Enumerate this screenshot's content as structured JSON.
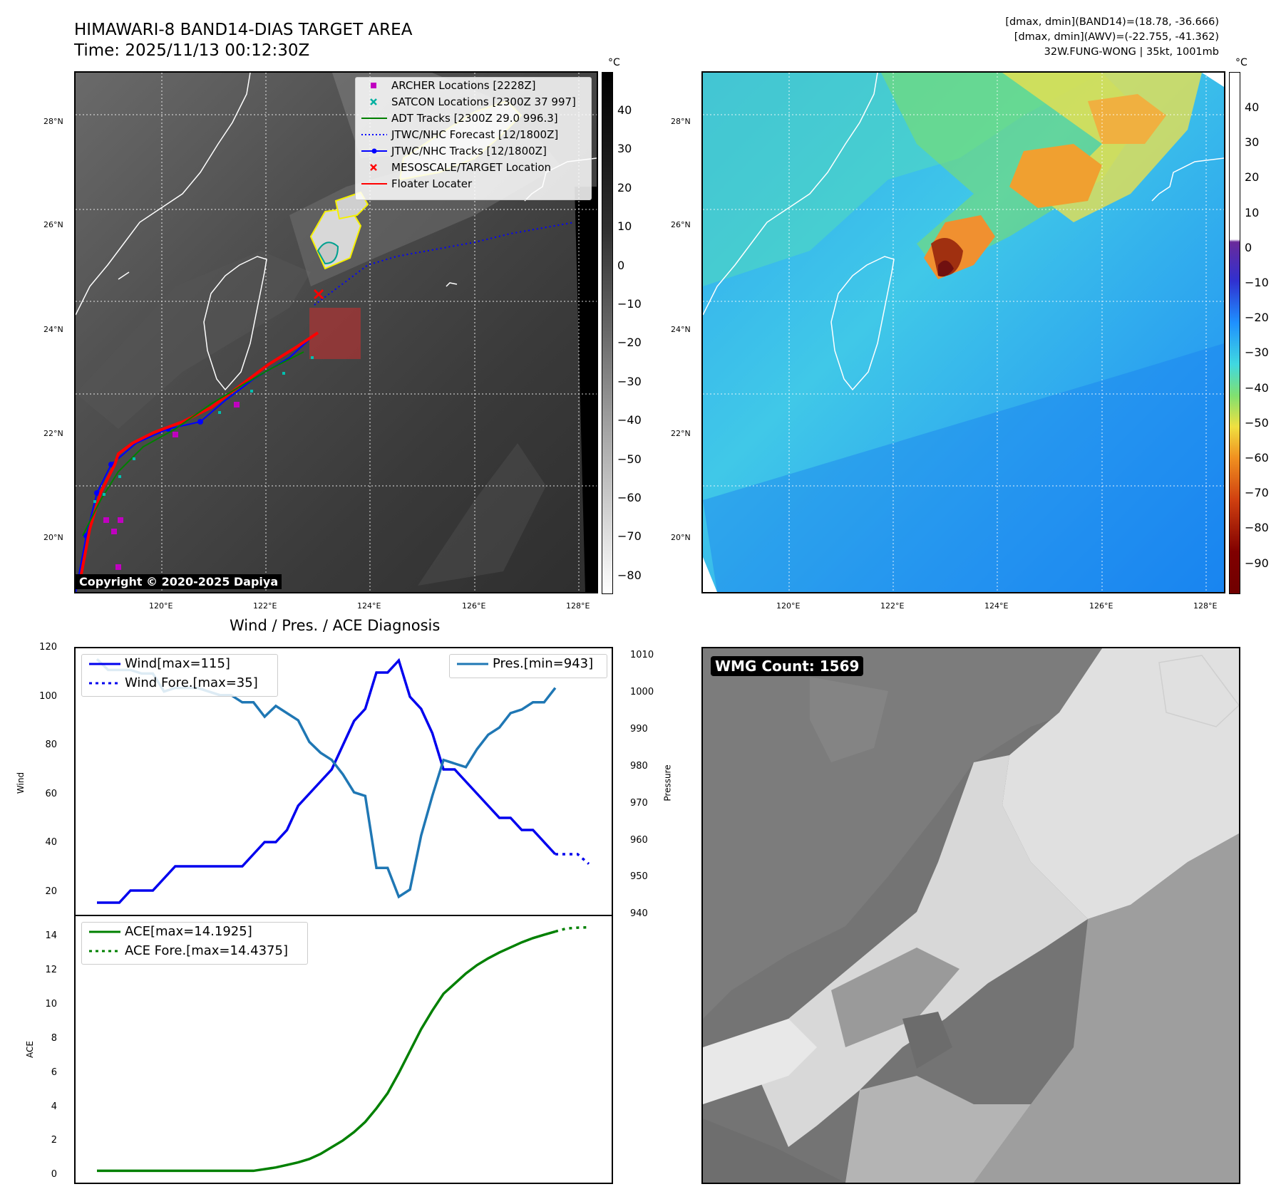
{
  "header": {
    "title_line1": "HIMAWARI-8 BAND14-DIAS TARGET AREA",
    "title_line2": "Time: 2025/11/13 00:12:30Z",
    "info_line1": "[dmax, dmin](BAND14)=(18.78, -36.666)",
    "info_line2": "[dmax, dmin](AWV)=(-22.755, -41.362)",
    "info_line3": "32W.FUNG-WONG | 35kt, 1001mb"
  },
  "map_axes": {
    "lat_ticks": [
      "28°N",
      "26°N",
      "24°N",
      "22°N",
      "20°N"
    ],
    "lon_ticks": [
      "120°E",
      "122°E",
      "124°E",
      "126°E",
      "128°E"
    ]
  },
  "ir_colorbar": {
    "unit": "°C",
    "ticks": [
      "40",
      "30",
      "20",
      "10",
      "0",
      "−10",
      "−20",
      "−30",
      "−40",
      "−50",
      "−60",
      "−70",
      "−80"
    ]
  },
  "wv_colorbar": {
    "unit": "°C",
    "ticks": [
      "40",
      "30",
      "20",
      "10",
      "0",
      "−10",
      "−20",
      "−30",
      "−40",
      "−50",
      "−60",
      "−70",
      "−80",
      "−90"
    ]
  },
  "legend": {
    "items": [
      {
        "label": "ARCHER Locations [2228Z]",
        "symbol": "square",
        "color": "#c000c0"
      },
      {
        "label": "SATCON Locations [2300Z 37 997]",
        "symbol": "x",
        "color": "#00b0a0"
      },
      {
        "label": "ADT Tracks [2300Z 29.0 996.3]",
        "symbol": "line",
        "color": "#008000"
      },
      {
        "label": "JTWC/NHC Forecast [12/1800Z]",
        "symbol": "dotted",
        "color": "#0000ff"
      },
      {
        "label": "JTWC/NHC Tracks [12/1800Z]",
        "symbol": "line-dot",
        "color": "#0000ff"
      },
      {
        "label": "MESOSCALE/TARGET Location",
        "symbol": "x",
        "color": "#ff0000"
      },
      {
        "label": "Floater Locater",
        "symbol": "line",
        "color": "#ff0000"
      }
    ]
  },
  "copyright": "Copyright © 2020-2025 Dapiya",
  "diagnosis": {
    "title": "Wind / Pres. / ACE Diagnosis",
    "wind_ylabel": "Wind",
    "pres_ylabel": "Pressure",
    "ace_ylabel": "ACE",
    "legend_wind": "Wind[max=115]",
    "legend_wind_fore": "Wind Fore.[max=35]",
    "legend_pres": "Pres.[min=943]",
    "legend_ace": "ACE[max=14.1925]",
    "legend_ace_fore": "ACE Fore.[max=14.4375]",
    "wind_ticks": [
      "120",
      "100",
      "80",
      "60",
      "40",
      "20"
    ],
    "pres_ticks": [
      "1010",
      "1000",
      "990",
      "980",
      "970",
      "960",
      "950",
      "940"
    ],
    "ace_ticks": [
      "14",
      "12",
      "10",
      "8",
      "6",
      "4",
      "2",
      "0"
    ]
  },
  "wmg": {
    "label": "WMG Count: 1569"
  },
  "chart_data": [
    {
      "type": "line",
      "title": "Wind / Pres. / ACE Diagnosis",
      "ylabel": "Wind",
      "ylim": [
        10,
        120
      ],
      "y2label": "Pressure",
      "y2lim": [
        938,
        1012
      ],
      "series": [
        {
          "name": "Wind[max=115]",
          "axis": "left",
          "color": "#0000ee",
          "values": [
            15,
            15,
            15,
            20,
            20,
            20,
            25,
            30,
            30,
            30,
            30,
            30,
            30,
            30,
            35,
            40,
            40,
            45,
            55,
            60,
            65,
            70,
            80,
            90,
            95,
            110,
            110,
            115,
            100,
            95,
            85,
            70,
            70,
            65,
            60,
            55,
            50,
            50,
            45,
            45,
            40,
            35
          ]
        },
        {
          "name": "Wind Fore.[max=35]",
          "axis": "left",
          "color": "#0000ee",
          "dash": "dotted",
          "start_index": 41,
          "values": [
            35,
            35,
            35,
            31
          ]
        },
        {
          "name": "Pres.[min=943]",
          "axis": "right",
          "color": "#1f77b4",
          "values": [
            1009,
            1006,
            1006,
            1006,
            1005,
            1005,
            1000,
            1001,
            1001,
            1001,
            1000,
            999,
            999,
            997,
            997,
            993,
            996,
            994,
            992,
            986,
            983,
            981,
            977,
            972,
            971,
            951,
            951,
            943,
            945,
            960,
            971,
            981,
            980,
            979,
            984,
            988,
            990,
            994,
            995,
            997,
            997,
            1001
          ]
        }
      ]
    },
    {
      "type": "line",
      "ylabel": "ACE",
      "ylim": [
        -0.7,
        15.1
      ],
      "series": [
        {
          "name": "ACE[max=14.1925]",
          "color": "#008000",
          "values": [
            0,
            0,
            0,
            0,
            0,
            0,
            0,
            0,
            0,
            0,
            0,
            0,
            0,
            0,
            0,
            0.1,
            0.2,
            0.35,
            0.5,
            0.7,
            1.0,
            1.4,
            1.8,
            2.3,
            2.9,
            3.7,
            4.6,
            5.8,
            7.1,
            8.4,
            9.5,
            10.5,
            11.1,
            11.7,
            12.2,
            12.6,
            12.95,
            13.25,
            13.55,
            13.8,
            14.0,
            14.19
          ]
        },
        {
          "name": "ACE Fore.[max=14.4375]",
          "color": "#008000",
          "dash": "dotted",
          "start_index": 41,
          "values": [
            14.19,
            14.37,
            14.42,
            14.44
          ]
        }
      ]
    }
  ]
}
